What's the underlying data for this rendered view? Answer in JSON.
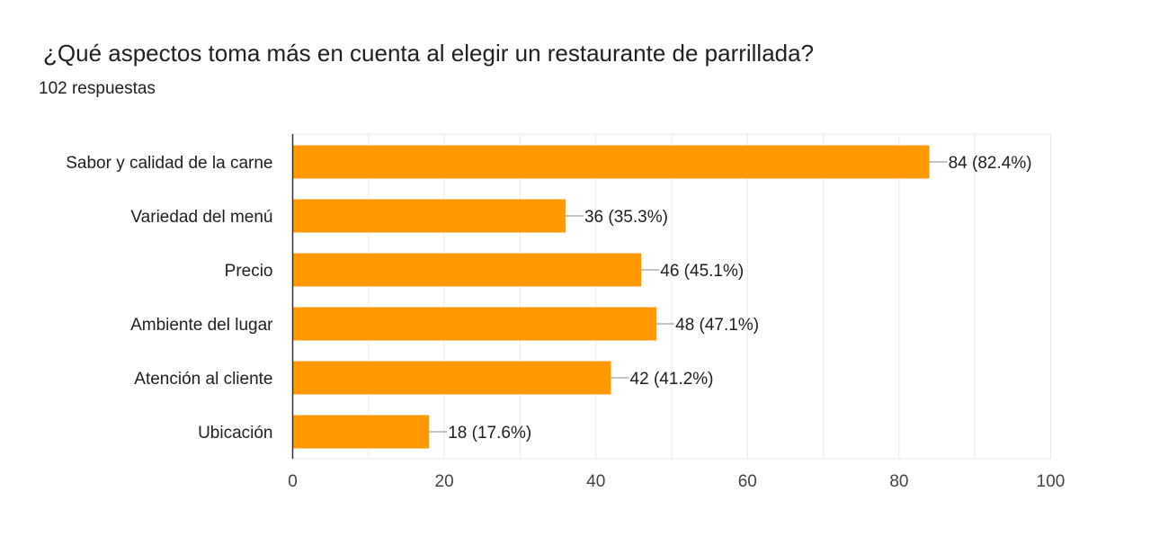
{
  "header": {
    "title": "¿Qué aspectos toma más en cuenta al elegir un restaurante de parrillada?",
    "responses": "102 respuestas"
  },
  "colors": {
    "bar": "#ff9900",
    "grid": "#e8e8e8",
    "axis": "#333333",
    "label_line": "#888888"
  },
  "chart_data": {
    "type": "bar",
    "orientation": "horizontal",
    "title": "¿Qué aspectos toma más en cuenta al elegir un restaurante de parrillada?",
    "xlabel": "",
    "ylabel": "",
    "categories": [
      "Sabor y calidad de la carne",
      "Variedad del menú",
      "Precio",
      "Ambiente del lugar",
      "Atención al cliente",
      "Ubicación"
    ],
    "values": [
      84,
      36,
      46,
      48,
      42,
      18
    ],
    "data_labels": [
      "84 (82.4%)",
      "36 (35.3%)",
      "46 (45.1%)",
      "48 (47.1%)",
      "42 (41.2%)",
      "18 (17.6%)"
    ],
    "xlim": [
      0,
      100
    ],
    "xticks": [
      0,
      20,
      40,
      60,
      80,
      100
    ],
    "grid": true
  }
}
